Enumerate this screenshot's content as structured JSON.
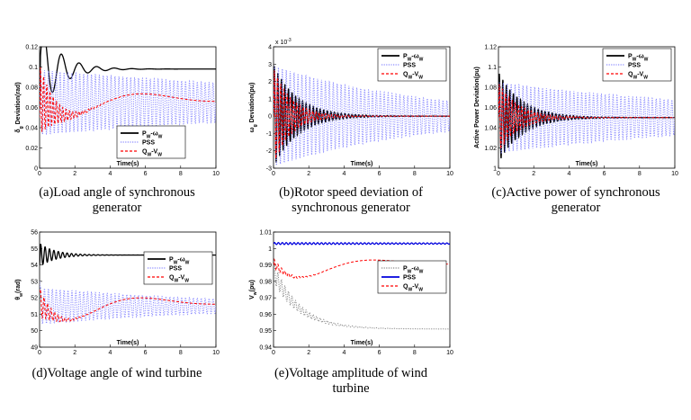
{
  "chart_data": [
    {
      "id": "a",
      "type": "line",
      "caption": "(a)Load angle of synchronous generator",
      "caption_lines": [
        "(a)Load angle of synchronous",
        "generator"
      ],
      "xlabel": "Time(s)",
      "ylabel": "δ_g Deviation(rad)",
      "ylabel_main": "δ",
      "ylabel_sub": "g",
      "ylabel_rest": " Deviation(rad)",
      "xlim": [
        0,
        10
      ],
      "ylim": [
        0,
        0.12
      ],
      "xticks": [
        "0",
        "2",
        "4",
        "6",
        "8",
        "10"
      ],
      "yticks": [
        "0",
        "0.02",
        "0.04",
        "0.06",
        "0.08",
        "0.1",
        "0.12"
      ],
      "legend_position": "bottom-right",
      "series": [
        {
          "name": "P_W-ω_W",
          "name_main": "P",
          "name_sub1": "W",
          "name_mid": "-ω",
          "name_sub2": "W",
          "color": "#000000",
          "style": "solid",
          "final": 0.098,
          "amp": 0.045,
          "freq": 1.0,
          "decay": 0.9,
          "slow_amp": 0,
          "slow_freq": 0,
          "slow_decay": 1,
          "start": 0.06
        },
        {
          "name": "PSS",
          "color": "#8a8aff",
          "style": "dotted",
          "final": 0.065,
          "amp": 0.032,
          "freq": 4.5,
          "decay": 0.05,
          "slow_amp": 0,
          "slow_freq": 0,
          "slow_decay": 1,
          "start": 0.05
        },
        {
          "name": "Q_W-V_W",
          "name_main": "Q",
          "name_sub1": "W",
          "name_mid": "-V",
          "name_sub2": "W",
          "color": "#ff0000",
          "style": "dashed",
          "final": 0.068,
          "amp": 0.035,
          "freq": 5.5,
          "decay": 1.2,
          "slow_amp": -0.025,
          "slow_freq": 0.12,
          "slow_decay": 0.25,
          "start": 0.05
        }
      ]
    },
    {
      "id": "b",
      "type": "line",
      "caption": "(b)Rotor speed deviation of synchronous generator",
      "caption_lines": [
        "(b)Rotor speed deviation of",
        "synchronous generator"
      ],
      "xlabel": "Time(s)",
      "ylabel": "ω_g Deviation(pu)",
      "ylabel_main": "ω",
      "ylabel_sub": "g",
      "ylabel_rest": " Deviation(pu)",
      "exponent": "x 10",
      "exponent_power": "-3",
      "xlim": [
        0,
        10
      ],
      "ylim": [
        -3,
        4
      ],
      "xticks": [
        "0",
        "2",
        "4",
        "6",
        "8",
        "10"
      ],
      "yticks": [
        "-3",
        "-2",
        "-1",
        "0",
        "1",
        "2",
        "3",
        "4"
      ],
      "legend_position": "top-right",
      "series": [
        {
          "name": "P_W-ω_W",
          "name_main": "P",
          "name_sub1": "W",
          "name_mid": "-ω",
          "name_sub2": "W",
          "color": "#000000",
          "style": "solid",
          "final": 0,
          "amp": 3.0,
          "freq": 5.0,
          "decay": 0.75,
          "slow_amp": 0,
          "slow_freq": 0,
          "slow_decay": 1,
          "start": 0
        },
        {
          "name": "PSS",
          "color": "#8a8aff",
          "style": "dotted",
          "final": 0,
          "amp": 2.9,
          "freq": 4.5,
          "decay": 0.12,
          "slow_amp": 0,
          "slow_freq": 0,
          "slow_decay": 1,
          "start": 0
        },
        {
          "name": "Q_W-V_W",
          "name_main": "Q",
          "name_sub1": "W",
          "name_mid": "-V",
          "name_sub2": "W",
          "color": "#ff0000",
          "style": "dashed",
          "final": 0,
          "amp": 2.8,
          "freq": 5.5,
          "decay": 1.0,
          "slow_amp": 0,
          "slow_freq": 0,
          "slow_decay": 1,
          "start": 0
        }
      ]
    },
    {
      "id": "c",
      "type": "line",
      "caption": "(c)Active power of synchronous generator",
      "caption_lines": [
        "(c)Active power of synchronous",
        "generator"
      ],
      "xlabel": "Time(s)",
      "ylabel": "Active Power Deviation(pu)",
      "ylabel_main": "Active Power Deviation(pu)",
      "ylabel_sub": "",
      "ylabel_rest": "",
      "xlim": [
        0,
        10
      ],
      "ylim": [
        1.0,
        1.12
      ],
      "xticks": [
        "0",
        "2",
        "4",
        "6",
        "8",
        "10"
      ],
      "yticks": [
        "1",
        "1.02",
        "1.04",
        "1.06",
        "1.08",
        "1.1",
        "1.12"
      ],
      "legend_position": "top-right",
      "series": [
        {
          "name": "P_W-ω_W",
          "name_main": "P",
          "name_sub1": "W",
          "name_mid": "-ω",
          "name_sub2": "W",
          "color": "#000000",
          "style": "solid",
          "final": 1.05,
          "amp": 0.045,
          "freq": 5.0,
          "decay": 0.75,
          "slow_amp": 0,
          "slow_freq": 0,
          "slow_decay": 1,
          "start": 1.05
        },
        {
          "name": "PSS",
          "color": "#8a8aff",
          "style": "dotted",
          "final": 1.05,
          "amp": 0.035,
          "freq": 4.5,
          "decay": 0.07,
          "slow_amp": 0,
          "slow_freq": 0,
          "slow_decay": 1,
          "start": 1.05
        },
        {
          "name": "Q_W-V_W",
          "name_main": "Q",
          "name_sub1": "W",
          "name_mid": "-V",
          "name_sub2": "W",
          "color": "#ff0000",
          "style": "dashed",
          "final": 1.05,
          "amp": 0.035,
          "freq": 5.5,
          "decay": 0.9,
          "slow_amp": 0,
          "slow_freq": 0,
          "slow_decay": 1,
          "start": 1.05
        }
      ]
    },
    {
      "id": "d",
      "type": "line",
      "caption": "(d)Voltage angle of wind turbine",
      "caption_lines": [
        "(d)Voltage angle of wind turbine"
      ],
      "xlabel": "Time(s)",
      "ylabel": "θ_w(rad)",
      "ylabel_main": "θ",
      "ylabel_sub": "w",
      "ylabel_rest": "(rad)",
      "xlim": [
        0,
        10
      ],
      "ylim": [
        49,
        56
      ],
      "xticks": [
        "0",
        "2",
        "4",
        "6",
        "8",
        "10"
      ],
      "yticks": [
        "49",
        "50",
        "51",
        "52",
        "53",
        "54",
        "55",
        "56"
      ],
      "legend_position": "right",
      "series": [
        {
          "name": "P_W-ω_W",
          "name_main": "P",
          "name_sub1": "W",
          "name_mid": "-ω",
          "name_sub2": "W",
          "color": "#000000",
          "style": "solid",
          "final": 54.6,
          "amp": 0.7,
          "freq": 4.0,
          "decay": 1.1,
          "slow_amp": 0,
          "slow_freq": 0,
          "slow_decay": 1,
          "start": 54.0
        },
        {
          "name": "PSS",
          "color": "#8a8aff",
          "style": "dotted",
          "final": 51.5,
          "amp": 1.1,
          "freq": 4.5,
          "decay": 0.09,
          "slow_amp": 0,
          "slow_freq": 0,
          "slow_decay": 1,
          "start": 53.0
        },
        {
          "name": "Q_W-V_W",
          "name_main": "Q",
          "name_sub1": "W",
          "name_mid": "-V",
          "name_sub2": "W",
          "color": "#ff0000",
          "style": "dashed",
          "final": 51.7,
          "amp": 0.9,
          "freq": 5.0,
          "decay": 1.4,
          "slow_amp": -1.8,
          "slow_freq": 0.12,
          "slow_decay": 0.3,
          "start": 52.5
        }
      ]
    },
    {
      "id": "e",
      "type": "line",
      "caption": "(e)Voltage amplitude of wind turbine",
      "caption_lines": [
        "(e)Voltage amplitude of wind",
        "turbine"
      ],
      "xlabel": "Time(s)",
      "ylabel": "V_w(pu)",
      "ylabel_main": "V",
      "ylabel_sub": "w",
      "ylabel_rest": "(pu)",
      "xlim": [
        0,
        10
      ],
      "ylim": [
        0.94,
        1.01
      ],
      "xticks": [
        "0",
        "2",
        "4",
        "6",
        "8",
        "10"
      ],
      "yticks": [
        "0.94",
        "0.95",
        "0.96",
        "0.97",
        "0.98",
        "0.99",
        "1",
        "1.01"
      ],
      "legend_position": "right",
      "series": [
        {
          "name": "P_W-ω_W",
          "name_main": "P",
          "name_sub1": "W",
          "name_mid": "-ω",
          "name_sub2": "W",
          "color": "#888888",
          "style": "dotted",
          "final": 0.951,
          "amp": 0.006,
          "freq": 5.0,
          "decay": 0.6,
          "slow_amp": 0.035,
          "slow_freq": 0,
          "slow_decay": 0.7,
          "start": 0.99
        },
        {
          "name": "PSS",
          "color": "#0000dd",
          "style": "solid",
          "final": 1.003,
          "amp": 0.0006,
          "freq": 4.5,
          "decay": 0.05,
          "slow_amp": 0,
          "slow_freq": 0,
          "slow_decay": 1,
          "start": 1.003
        },
        {
          "name": "Q_W-V_W",
          "name_main": "Q",
          "name_sub1": "W",
          "name_mid": "-V",
          "name_sub2": "W",
          "color": "#ff0000",
          "style": "dashed",
          "final": 0.991,
          "amp": 0.003,
          "freq": 5.0,
          "decay": 1.2,
          "slow_amp": -0.016,
          "slow_freq": 0.12,
          "slow_decay": 0.35,
          "start": 0.99
        }
      ]
    }
  ]
}
